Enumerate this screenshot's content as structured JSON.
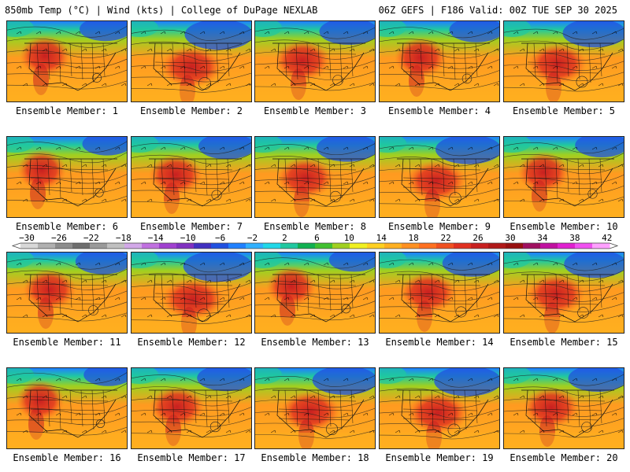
{
  "header": {
    "left_title": "850mb Temp (°C) | Wind (kts) | College of DuPage NEXLAB",
    "right_title": "06Z GEFS | F186 Valid: 00Z TUE SEP 30 2025"
  },
  "panels": [
    {
      "label": "Ensemble Member: 1"
    },
    {
      "label": "Ensemble Member: 2"
    },
    {
      "label": "Ensemble Member: 3"
    },
    {
      "label": "Ensemble Member: 4"
    },
    {
      "label": "Ensemble Member: 5"
    },
    {
      "label": "Ensemble Member: 6"
    },
    {
      "label": "Ensemble Member: 7"
    },
    {
      "label": "Ensemble Member: 8"
    },
    {
      "label": "Ensemble Member: 9"
    },
    {
      "label": "Ensemble Member: 10"
    },
    {
      "label": "Ensemble Member: 11"
    },
    {
      "label": "Ensemble Member: 12"
    },
    {
      "label": "Ensemble Member: 13"
    },
    {
      "label": "Ensemble Member: 14"
    },
    {
      "label": "Ensemble Member: 15"
    },
    {
      "label": "Ensemble Member: 16"
    },
    {
      "label": "Ensemble Member: 17"
    },
    {
      "label": "Ensemble Member: 18"
    },
    {
      "label": "Ensemble Member: 19"
    },
    {
      "label": "Ensemble Member: 20"
    }
  ],
  "colorbar": {
    "tick_labels": [
      "−30",
      "−26",
      "−22",
      "−18",
      "−14",
      "−10",
      "−6",
      "−2",
      "2",
      "6",
      "10",
      "14",
      "18",
      "22",
      "26",
      "30",
      "34",
      "38",
      "42"
    ],
    "colors": [
      "#d8d8d8",
      "#b0b0b0",
      "#8c8c8c",
      "#6e6e6e",
      "#9a9a9a",
      "#c0c0c0",
      "#d2a8e8",
      "#c070e0",
      "#a040d0",
      "#8030c0",
      "#4030c0",
      "#2050e0",
      "#2080ff",
      "#30b0ff",
      "#20d8e8",
      "#20c8a0",
      "#10b050",
      "#40c030",
      "#a0d020",
      "#f0f020",
      "#ffd020",
      "#ffb020",
      "#ff9020",
      "#ff7020",
      "#f05020",
      "#e03020",
      "#c82020",
      "#b01818",
      "#981010",
      "#a01060",
      "#c010a0",
      "#e020d0",
      "#f050f0",
      "#ffa0ff"
    ]
  }
}
